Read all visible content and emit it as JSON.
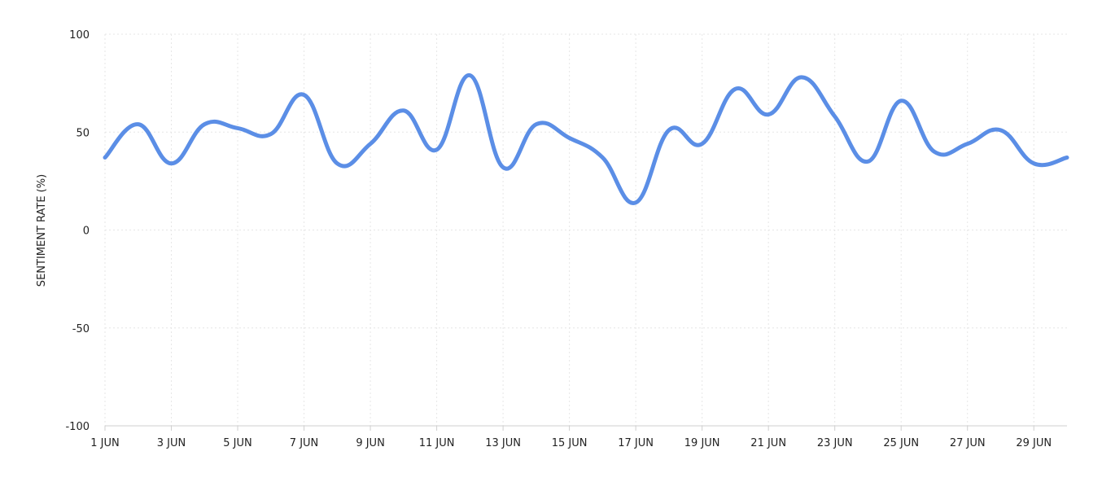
{
  "chart_data": {
    "type": "line",
    "title": "",
    "xlabel": "",
    "ylabel": "SENTIMENT RATE (%)",
    "ylim": [
      -100,
      100
    ],
    "yticks": [
      "100",
      "50",
      "0",
      "-50",
      "-100"
    ],
    "yticks_values": [
      100,
      50,
      0,
      -50,
      -100
    ],
    "xlim": [
      "2024-06-01",
      "2024-06-30"
    ],
    "xticks": [
      "1 JUN",
      "3 JUN",
      "5 JUN",
      "7 JUN",
      "9 JUN",
      "11 JUN",
      "13 JUN",
      "15 JUN",
      "17 JUN",
      "19 JUN",
      "21 JUN",
      "23 JUN",
      "25 JUN",
      "27 JUN",
      "29 JUN"
    ],
    "grid": true,
    "legend": "none",
    "line_color": "#5b8ee6",
    "x": [
      "1 JUN",
      "2 JUN",
      "3 JUN",
      "4 JUN",
      "5 JUN",
      "6 JUN",
      "7 JUN",
      "8 JUN",
      "9 JUN",
      "10 JUN",
      "11 JUN",
      "12 JUN",
      "13 JUN",
      "14 JUN",
      "15 JUN",
      "16 JUN",
      "17 JUN",
      "18 JUN",
      "19 JUN",
      "20 JUN",
      "21 JUN",
      "22 JUN",
      "23 JUN",
      "24 JUN",
      "25 JUN",
      "26 JUN",
      "27 JUN",
      "28 JUN",
      "29 JUN",
      "30 JUN"
    ],
    "values": [
      37,
      54,
      34,
      54,
      52,
      49,
      69,
      34,
      44,
      61,
      41,
      79,
      32,
      54,
      47,
      37,
      14,
      51,
      44,
      72,
      59,
      78,
      58,
      35,
      66,
      40,
      44,
      51,
      34,
      37
    ]
  }
}
